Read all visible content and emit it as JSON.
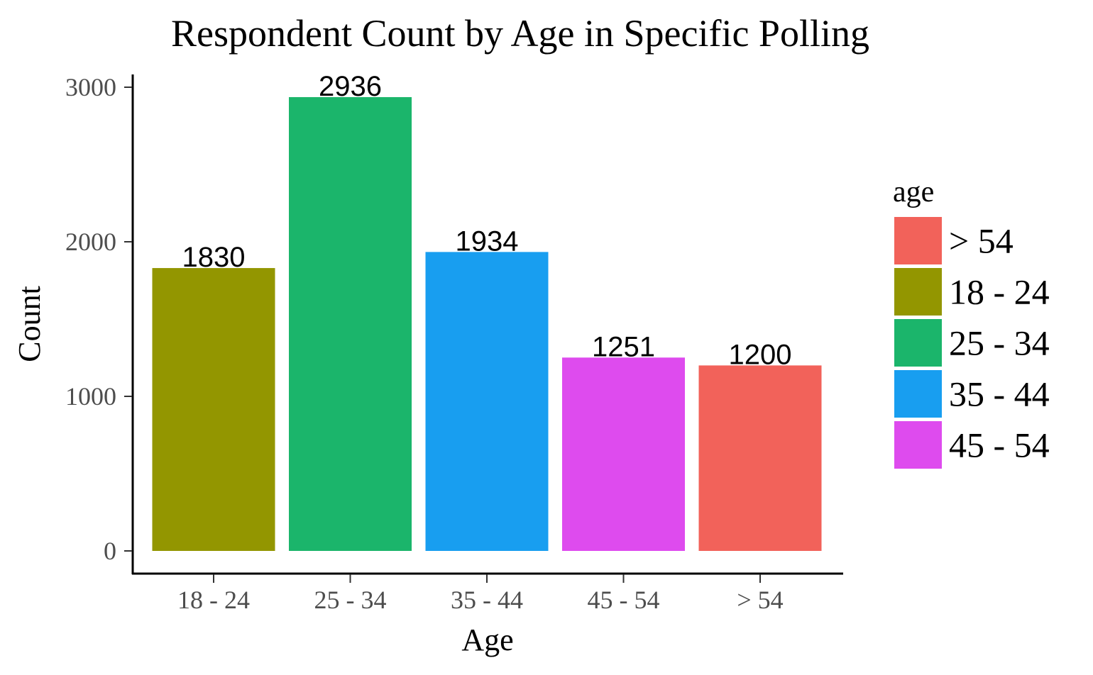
{
  "chart_data": {
    "type": "bar",
    "title": "Respondent Count by Age in Specific Polling",
    "xlabel": "Age",
    "ylabel": "Count",
    "categories": [
      "18 - 24",
      "25 - 34",
      "35 - 44",
      "45 - 54",
      "> 54"
    ],
    "values": [
      1830,
      2936,
      1934,
      1251,
      1200
    ],
    "data_labels": [
      "1830",
      "2936",
      "1934",
      "1251",
      "1200"
    ],
    "colors": [
      "#939600",
      "#1BB56B",
      "#189EF0",
      "#DE4BEE",
      "#F2625A"
    ],
    "ylim": [
      0,
      3000
    ],
    "yticks": [
      0,
      1000,
      2000,
      3000
    ],
    "ytick_labels": [
      "0",
      "1000",
      "2000",
      "3000"
    ],
    "grid": false,
    "legend": {
      "title": "age",
      "placement": "right",
      "entries": [
        {
          "label": "> 54",
          "color": "#F2625A"
        },
        {
          "label": "18 - 24",
          "color": "#939600"
        },
        {
          "label": "25 - 34",
          "color": "#1BB56B"
        },
        {
          "label": "35 - 44",
          "color": "#189EF0"
        },
        {
          "label": "45 - 54",
          "color": "#DE4BEE"
        }
      ]
    }
  }
}
